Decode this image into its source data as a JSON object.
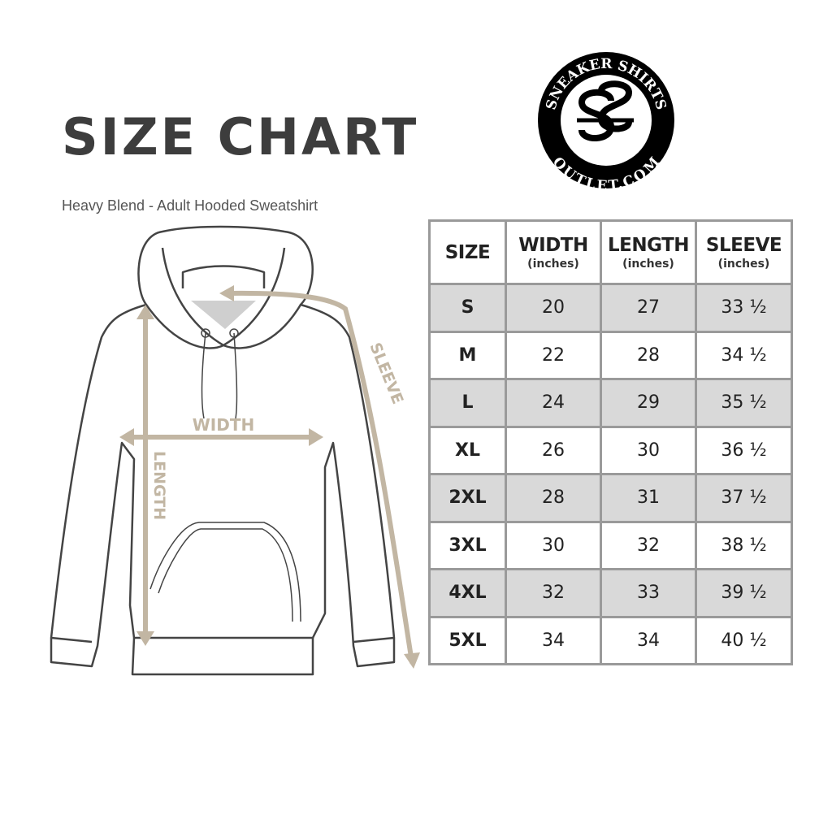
{
  "title": "SIZE CHART",
  "subtitle": "Heavy Blend - Adult Hooded Sweatshirt",
  "logo": {
    "top_text": "SNEAKER SHIRTS",
    "bottom_text": "OUTLET.COM",
    "monogram": "SS"
  },
  "diagram": {
    "width_label": "WIDTH",
    "length_label": "LENGTH",
    "sleeve_label": "SLEEVE",
    "accent_color": "#c2b6a3"
  },
  "table": {
    "headers": [
      {
        "label": "SIZE",
        "unit": ""
      },
      {
        "label": "WIDTH",
        "unit": "(inches)"
      },
      {
        "label": "LENGTH",
        "unit": "(inches)"
      },
      {
        "label": "SLEEVE",
        "unit": "(inches)"
      }
    ],
    "rows": [
      [
        "S",
        "20",
        "27",
        "33 ½"
      ],
      [
        "M",
        "22",
        "28",
        "34 ½"
      ],
      [
        "L",
        "24",
        "29",
        "35 ½"
      ],
      [
        "XL",
        "26",
        "30",
        "36 ½"
      ],
      [
        "2XL",
        "28",
        "31",
        "37 ½"
      ],
      [
        "3XL",
        "30",
        "32",
        "38 ½"
      ],
      [
        "4XL",
        "32",
        "33",
        "39 ½"
      ],
      [
        "5XL",
        "34",
        "34",
        "40 ½"
      ]
    ],
    "shade_color": "#d9d9d9"
  }
}
